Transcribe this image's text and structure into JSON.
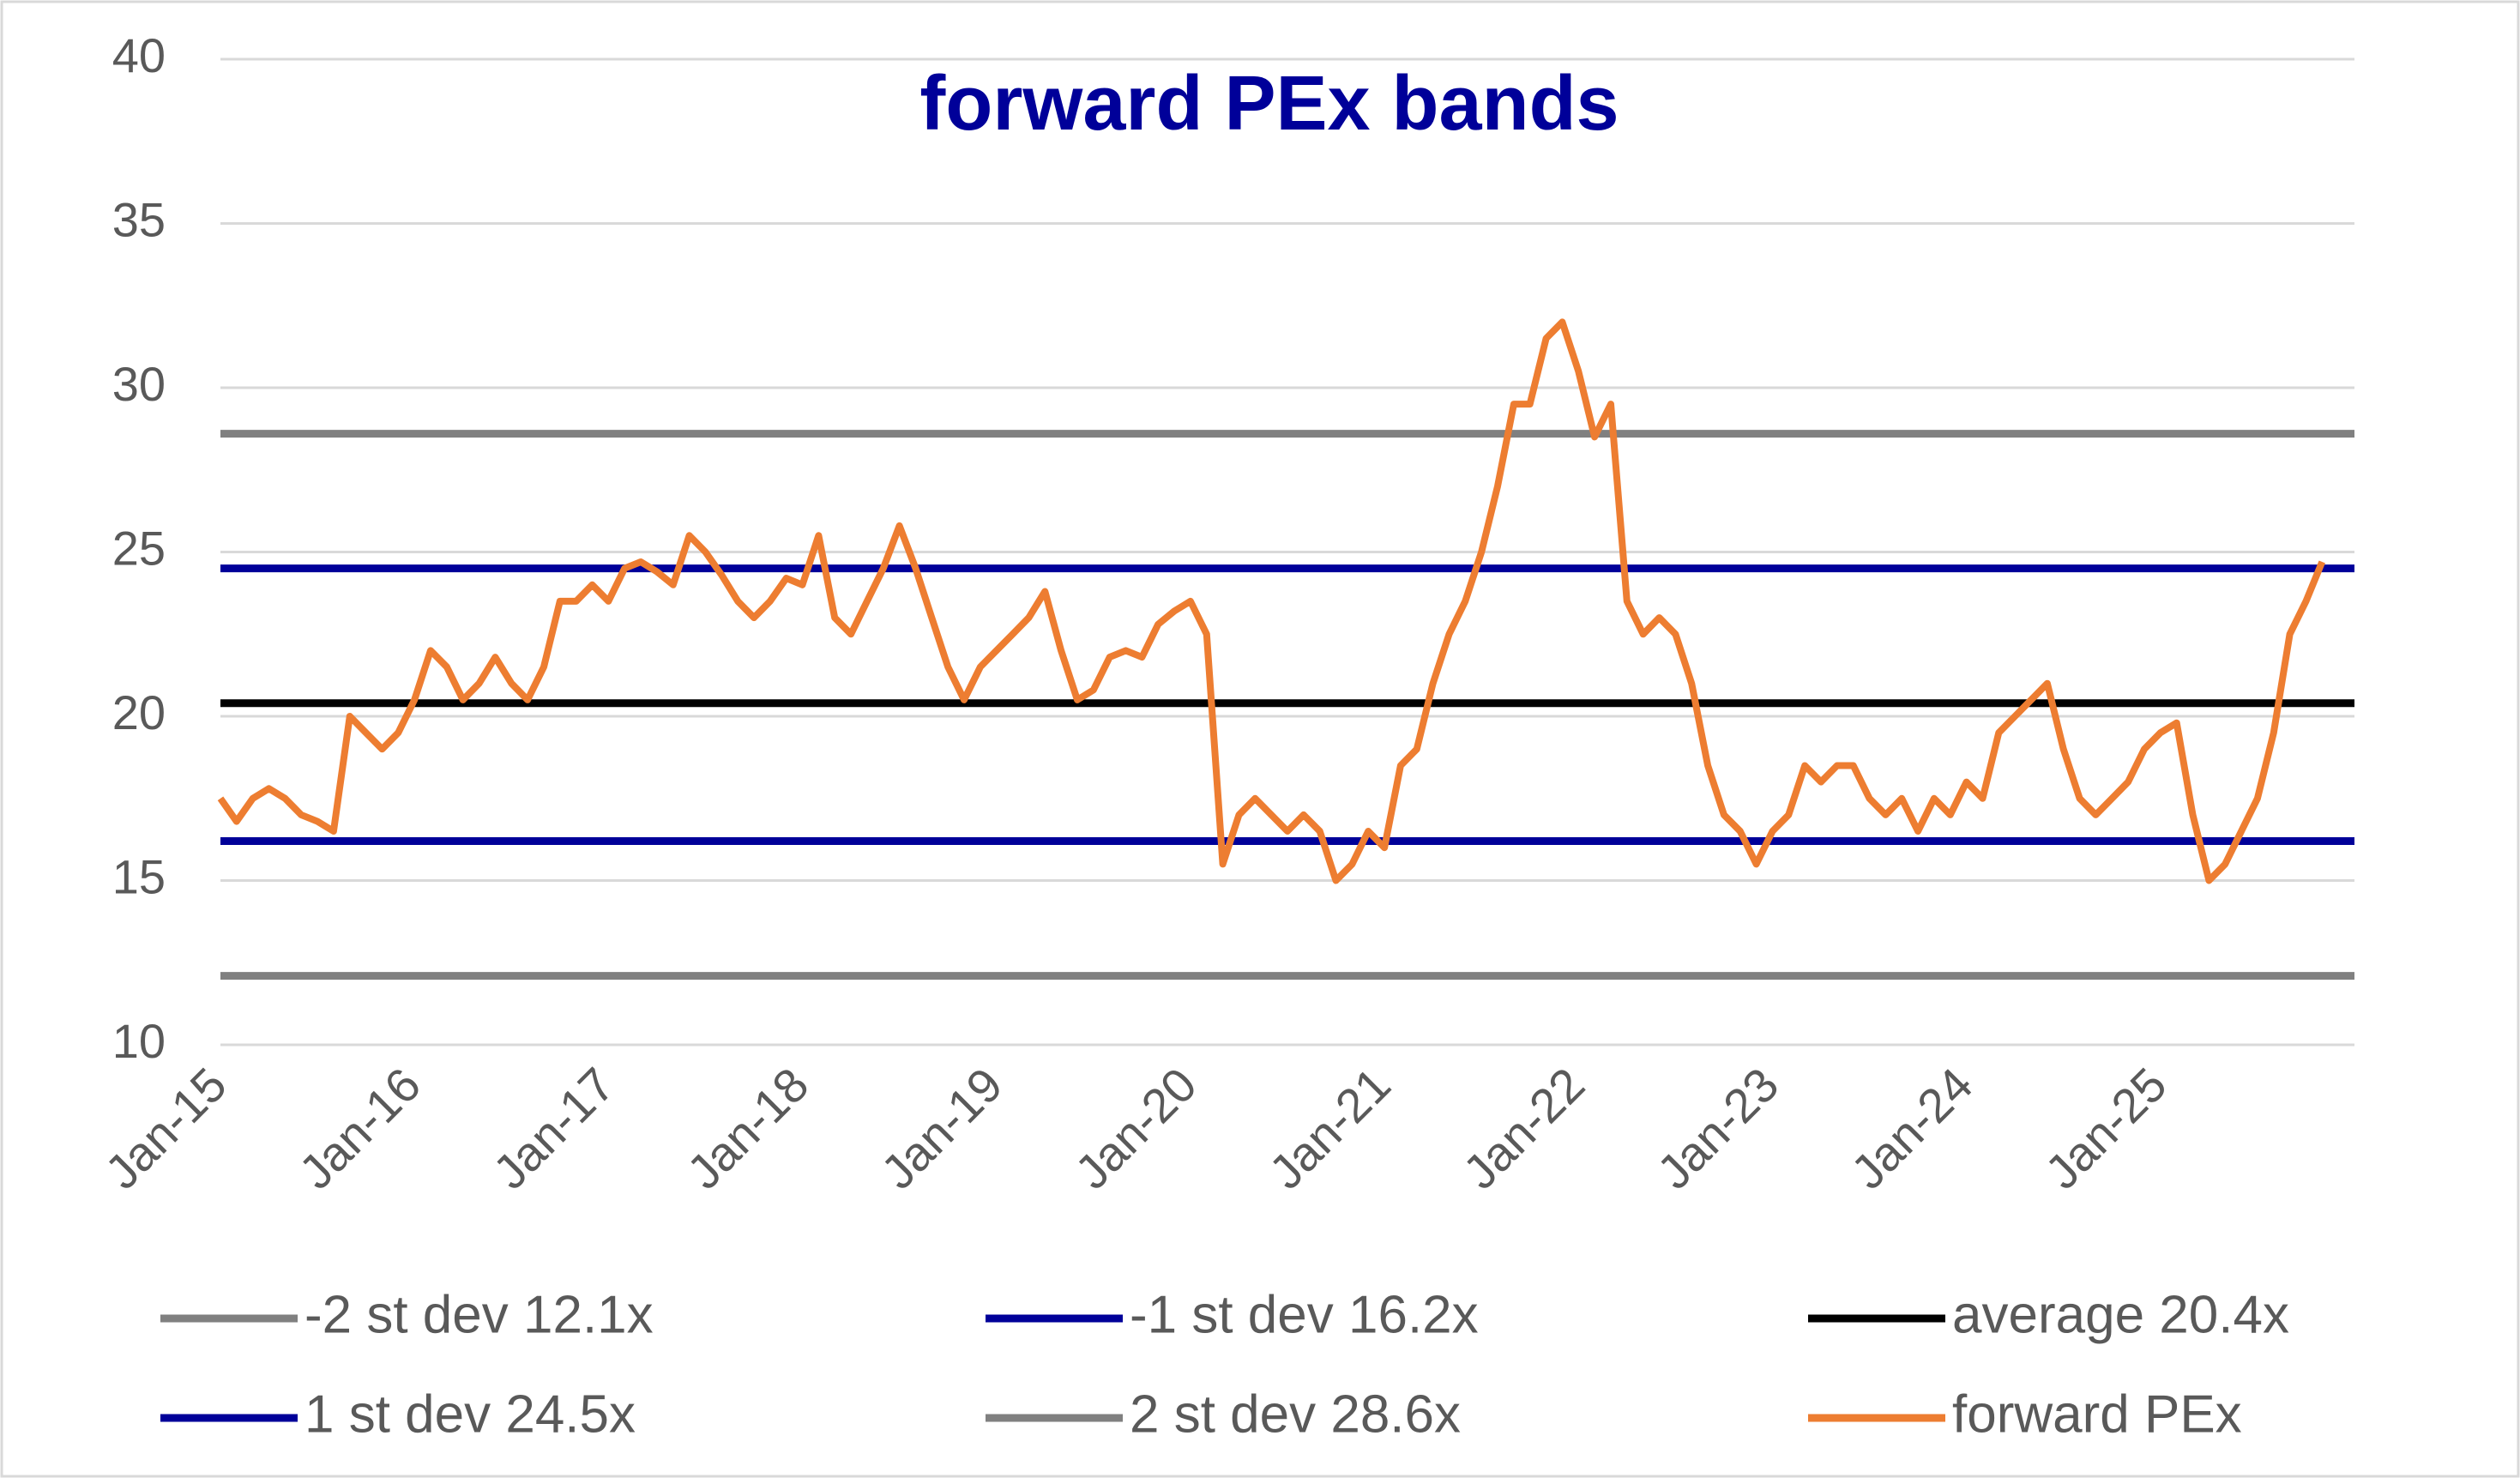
{
  "chart_data": {
    "type": "line",
    "title": "forward PEx bands",
    "categories": [
      "Jan-15",
      null,
      null,
      null,
      null,
      null,
      null,
      null,
      null,
      null,
      null,
      null,
      "Jan-16",
      null,
      null,
      null,
      null,
      null,
      null,
      null,
      null,
      null,
      null,
      null,
      "Jan-17",
      null,
      null,
      null,
      null,
      null,
      null,
      null,
      null,
      null,
      null,
      null,
      "Jan-18",
      null,
      null,
      null,
      null,
      null,
      null,
      null,
      null,
      null,
      null,
      null,
      "Jan-19",
      null,
      null,
      null,
      null,
      null,
      null,
      null,
      null,
      null,
      null,
      null,
      "Jan-20",
      null,
      null,
      null,
      null,
      null,
      null,
      null,
      null,
      null,
      null,
      null,
      "Jan-21",
      null,
      null,
      null,
      null,
      null,
      null,
      null,
      null,
      null,
      null,
      null,
      "Jan-22",
      null,
      null,
      null,
      null,
      null,
      null,
      null,
      null,
      null,
      null,
      null,
      "Jan-23",
      null,
      null,
      null,
      null,
      null,
      null,
      null,
      null,
      null,
      null,
      null,
      "Jan-24",
      null,
      null,
      null,
      null,
      null,
      null,
      null,
      null,
      null,
      null,
      null,
      "Jan-25",
      null,
      null,
      null,
      null,
      null,
      null,
      null,
      null,
      null,
      null,
      null,
      null
    ],
    "series": [
      {
        "name": "-2 st dev 12.1x",
        "color": "#808080",
        "values": [
          12.1,
          12.1,
          12.1,
          12.1,
          12.1,
          12.1,
          12.1,
          12.1,
          12.1,
          12.1,
          12.1,
          12.1,
          12.1,
          12.1,
          12.1,
          12.1,
          12.1,
          12.1,
          12.1,
          12.1,
          12.1,
          12.1,
          12.1,
          12.1,
          12.1,
          12.1,
          12.1,
          12.1,
          12.1,
          12.1,
          12.1,
          12.1,
          12.1,
          12.1,
          12.1,
          12.1,
          12.1,
          12.1,
          12.1,
          12.1,
          12.1,
          12.1,
          12.1,
          12.1,
          12.1,
          12.1,
          12.1,
          12.1,
          12.1,
          12.1,
          12.1,
          12.1,
          12.1,
          12.1,
          12.1,
          12.1,
          12.1,
          12.1,
          12.1,
          12.1,
          12.1,
          12.1,
          12.1,
          12.1,
          12.1,
          12.1,
          12.1,
          12.1,
          12.1,
          12.1,
          12.1,
          12.1,
          12.1,
          12.1,
          12.1,
          12.1,
          12.1,
          12.1,
          12.1,
          12.1,
          12.1,
          12.1,
          12.1,
          12.1,
          12.1,
          12.1,
          12.1,
          12.1,
          12.1,
          12.1,
          12.1,
          12.1,
          12.1,
          12.1,
          12.1,
          12.1,
          12.1,
          12.1,
          12.1,
          12.1,
          12.1,
          12.1,
          12.1,
          12.1,
          12.1,
          12.1,
          12.1,
          12.1,
          12.1,
          12.1,
          12.1,
          12.1,
          12.1,
          12.1,
          12.1,
          12.1,
          12.1,
          12.1,
          12.1,
          12.1,
          12.1,
          12.1,
          12.1,
          12.1,
          12.1,
          12.1,
          12.1,
          12.1,
          12.1,
          12.1,
          12.1,
          12.1,
          12.1
        ]
      },
      {
        "name": "-1 st dev 16.2x",
        "color": "#000099",
        "values": [
          16.2,
          16.2,
          16.2,
          16.2,
          16.2,
          16.2,
          16.2,
          16.2,
          16.2,
          16.2,
          16.2,
          16.2,
          16.2,
          16.2,
          16.2,
          16.2,
          16.2,
          16.2,
          16.2,
          16.2,
          16.2,
          16.2,
          16.2,
          16.2,
          16.2,
          16.2,
          16.2,
          16.2,
          16.2,
          16.2,
          16.2,
          16.2,
          16.2,
          16.2,
          16.2,
          16.2,
          16.2,
          16.2,
          16.2,
          16.2,
          16.2,
          16.2,
          16.2,
          16.2,
          16.2,
          16.2,
          16.2,
          16.2,
          16.2,
          16.2,
          16.2,
          16.2,
          16.2,
          16.2,
          16.2,
          16.2,
          16.2,
          16.2,
          16.2,
          16.2,
          16.2,
          16.2,
          16.2,
          16.2,
          16.2,
          16.2,
          16.2,
          16.2,
          16.2,
          16.2,
          16.2,
          16.2,
          16.2,
          16.2,
          16.2,
          16.2,
          16.2,
          16.2,
          16.2,
          16.2,
          16.2,
          16.2,
          16.2,
          16.2,
          16.2,
          16.2,
          16.2,
          16.2,
          16.2,
          16.2,
          16.2,
          16.2,
          16.2,
          16.2,
          16.2,
          16.2,
          16.2,
          16.2,
          16.2,
          16.2,
          16.2,
          16.2,
          16.2,
          16.2,
          16.2,
          16.2,
          16.2,
          16.2,
          16.2,
          16.2,
          16.2,
          16.2,
          16.2,
          16.2,
          16.2,
          16.2,
          16.2,
          16.2,
          16.2,
          16.2,
          16.2,
          16.2,
          16.2,
          16.2,
          16.2,
          16.2,
          16.2,
          16.2,
          16.2,
          16.2,
          16.2,
          16.2,
          16.2
        ]
      },
      {
        "name": "average 20.4x",
        "color": "#000000",
        "values": [
          20.4,
          20.4,
          20.4,
          20.4,
          20.4,
          20.4,
          20.4,
          20.4,
          20.4,
          20.4,
          20.4,
          20.4,
          20.4,
          20.4,
          20.4,
          20.4,
          20.4,
          20.4,
          20.4,
          20.4,
          20.4,
          20.4,
          20.4,
          20.4,
          20.4,
          20.4,
          20.4,
          20.4,
          20.4,
          20.4,
          20.4,
          20.4,
          20.4,
          20.4,
          20.4,
          20.4,
          20.4,
          20.4,
          20.4,
          20.4,
          20.4,
          20.4,
          20.4,
          20.4,
          20.4,
          20.4,
          20.4,
          20.4,
          20.4,
          20.4,
          20.4,
          20.4,
          20.4,
          20.4,
          20.4,
          20.4,
          20.4,
          20.4,
          20.4,
          20.4,
          20.4,
          20.4,
          20.4,
          20.4,
          20.4,
          20.4,
          20.4,
          20.4,
          20.4,
          20.4,
          20.4,
          20.4,
          20.4,
          20.4,
          20.4,
          20.4,
          20.4,
          20.4,
          20.4,
          20.4,
          20.4,
          20.4,
          20.4,
          20.4,
          20.4,
          20.4,
          20.4,
          20.4,
          20.4,
          20.4,
          20.4,
          20.4,
          20.4,
          20.4,
          20.4,
          20.4,
          20.4,
          20.4,
          20.4,
          20.4,
          20.4,
          20.4,
          20.4,
          20.4,
          20.4,
          20.4,
          20.4,
          20.4,
          20.4,
          20.4,
          20.4,
          20.4,
          20.4,
          20.4,
          20.4,
          20.4,
          20.4,
          20.4,
          20.4,
          20.4,
          20.4,
          20.4,
          20.4,
          20.4,
          20.4,
          20.4,
          20.4,
          20.4,
          20.4,
          20.4,
          20.4,
          20.4,
          20.4
        ]
      },
      {
        "name": "1 st dev 24.5x",
        "color": "#000099",
        "values": [
          24.5,
          24.5,
          24.5,
          24.5,
          24.5,
          24.5,
          24.5,
          24.5,
          24.5,
          24.5,
          24.5,
          24.5,
          24.5,
          24.5,
          24.5,
          24.5,
          24.5,
          24.5,
          24.5,
          24.5,
          24.5,
          24.5,
          24.5,
          24.5,
          24.5,
          24.5,
          24.5,
          24.5,
          24.5,
          24.5,
          24.5,
          24.5,
          24.5,
          24.5,
          24.5,
          24.5,
          24.5,
          24.5,
          24.5,
          24.5,
          24.5,
          24.5,
          24.5,
          24.5,
          24.5,
          24.5,
          24.5,
          24.5,
          24.5,
          24.5,
          24.5,
          24.5,
          24.5,
          24.5,
          24.5,
          24.5,
          24.5,
          24.5,
          24.5,
          24.5,
          24.5,
          24.5,
          24.5,
          24.5,
          24.5,
          24.5,
          24.5,
          24.5,
          24.5,
          24.5,
          24.5,
          24.5,
          24.5,
          24.5,
          24.5,
          24.5,
          24.5,
          24.5,
          24.5,
          24.5,
          24.5,
          24.5,
          24.5,
          24.5,
          24.5,
          24.5,
          24.5,
          24.5,
          24.5,
          24.5,
          24.5,
          24.5,
          24.5,
          24.5,
          24.5,
          24.5,
          24.5,
          24.5,
          24.5,
          24.5,
          24.5,
          24.5,
          24.5,
          24.5,
          24.5,
          24.5,
          24.5,
          24.5,
          24.5,
          24.5,
          24.5,
          24.5,
          24.5,
          24.5,
          24.5,
          24.5,
          24.5,
          24.5,
          24.5,
          24.5,
          24.5,
          24.5,
          24.5,
          24.5,
          24.5,
          24.5,
          24.5,
          24.5,
          24.5,
          24.5,
          24.5,
          24.5,
          24.5
        ]
      },
      {
        "name": "2 st dev 28.6x",
        "color": "#808080",
        "values": [
          28.6,
          28.6,
          28.6,
          28.6,
          28.6,
          28.6,
          28.6,
          28.6,
          28.6,
          28.6,
          28.6,
          28.6,
          28.6,
          28.6,
          28.6,
          28.6,
          28.6,
          28.6,
          28.6,
          28.6,
          28.6,
          28.6,
          28.6,
          28.6,
          28.6,
          28.6,
          28.6,
          28.6,
          28.6,
          28.6,
          28.6,
          28.6,
          28.6,
          28.6,
          28.6,
          28.6,
          28.6,
          28.6,
          28.6,
          28.6,
          28.6,
          28.6,
          28.6,
          28.6,
          28.6,
          28.6,
          28.6,
          28.6,
          28.6,
          28.6,
          28.6,
          28.6,
          28.6,
          28.6,
          28.6,
          28.6,
          28.6,
          28.6,
          28.6,
          28.6,
          28.6,
          28.6,
          28.6,
          28.6,
          28.6,
          28.6,
          28.6,
          28.6,
          28.6,
          28.6,
          28.6,
          28.6,
          28.6,
          28.6,
          28.6,
          28.6,
          28.6,
          28.6,
          28.6,
          28.6,
          28.6,
          28.6,
          28.6,
          28.6,
          28.6,
          28.6,
          28.6,
          28.6,
          28.6,
          28.6,
          28.6,
          28.6,
          28.6,
          28.6,
          28.6,
          28.6,
          28.6,
          28.6,
          28.6,
          28.6,
          28.6,
          28.6,
          28.6,
          28.6,
          28.6,
          28.6,
          28.6,
          28.6,
          28.6,
          28.6,
          28.6,
          28.6,
          28.6,
          28.6,
          28.6,
          28.6,
          28.6,
          28.6,
          28.6,
          28.6,
          28.6,
          28.6,
          28.6,
          28.6,
          28.6,
          28.6,
          28.6,
          28.6,
          28.6,
          28.6,
          28.6,
          28.6,
          28.6
        ]
      },
      {
        "name": "forward PEx",
        "color": "#ED7D31",
        "values": [
          17.5,
          16.8,
          17.5,
          17.8,
          17.5,
          17.0,
          16.8,
          16.5,
          20,
          19.5,
          19,
          19.5,
          20.5,
          22,
          21.5,
          20.5,
          21,
          21.8,
          21,
          20.5,
          21.5,
          23.5,
          23.5,
          24,
          23.5,
          24.5,
          24.7,
          24.4,
          24.0,
          25.5,
          25,
          24.3,
          23.5,
          23,
          23.5,
          24.2,
          24,
          25.5,
          23,
          22.5,
          23.5,
          24.5,
          25.8,
          24.5,
          23,
          21.5,
          20.5,
          21.5,
          22,
          22.5,
          23,
          23.8,
          22,
          20.5,
          20.8,
          21.8,
          22,
          21.8,
          22.8,
          23.2,
          23.5,
          22.5,
          15.5,
          17,
          17.5,
          17.0,
          16.5,
          17,
          16.5,
          15,
          15.5,
          16.5,
          16.0,
          18.5,
          19.0,
          21,
          22.5,
          23.5,
          25,
          27,
          29.5,
          29.5,
          31.5,
          32,
          30.5,
          28.5,
          29.5,
          23.5,
          22.5,
          23,
          22.5,
          21,
          18.5,
          17,
          16.5,
          15.5,
          16.5,
          17,
          18.5,
          18,
          18.5,
          18.5,
          17.5,
          17,
          17.5,
          16.5,
          17.5,
          17,
          18,
          17.5,
          19.5,
          20,
          20.5,
          21,
          19,
          17.5,
          17,
          17.5,
          18.0,
          19.0,
          19.5,
          19.8,
          17,
          15,
          15.5,
          16.5,
          17.5,
          19.5,
          22.5,
          23.5,
          24.7,
          null,
          null
        ]
      }
    ],
    "ylim": [
      10,
      40
    ],
    "yticks": [
      10,
      15,
      20,
      25,
      30,
      35,
      40
    ],
    "grid": true
  }
}
